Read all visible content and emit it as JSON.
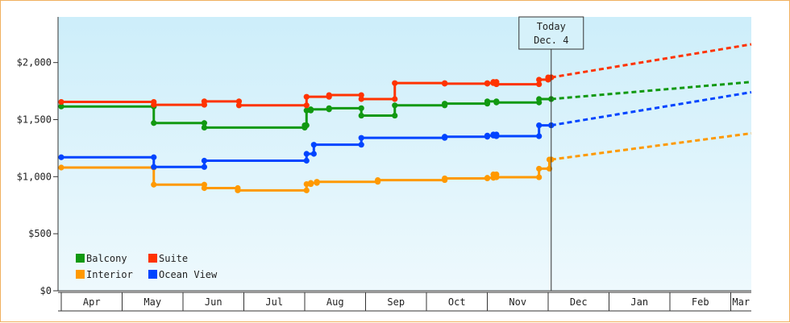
{
  "chart_data": {
    "type": "line",
    "title": "",
    "xlabel": "",
    "ylabel": "",
    "ylim": [
      0,
      2400
    ],
    "x_range": [
      "Apr",
      "Mar"
    ],
    "y_ticks": [
      {
        "value": 0,
        "label": "$0"
      },
      {
        "value": 500,
        "label": "$500"
      },
      {
        "value": 1000,
        "label": "$1,000"
      },
      {
        "value": 1500,
        "label": "$1,500"
      },
      {
        "value": 2000,
        "label": "$2,000"
      }
    ],
    "months": [
      "Apr",
      "May",
      "Jun",
      "Jul",
      "Aug",
      "Sep",
      "Oct",
      "Nov",
      "Dec",
      "Jan",
      "Feb",
      "Mar"
    ],
    "grid": false,
    "legend_position": "bottom-left",
    "today_marker": {
      "x": 8.05,
      "line1": "Today",
      "line2": "Dec. 4"
    },
    "series": [
      {
        "name": "Balcony",
        "color": "#119911",
        "points": [
          [
            0.0,
            1615
          ],
          [
            1.5,
            1615
          ],
          [
            1.52,
            1470
          ],
          [
            2.3,
            1470
          ],
          [
            2.35,
            1430
          ],
          [
            2.9,
            1430
          ],
          [
            4.0,
            1450
          ],
          [
            4.03,
            1580
          ],
          [
            4.1,
            1590
          ],
          [
            4.4,
            1600
          ],
          [
            4.9,
            1600
          ],
          [
            4.93,
            1535
          ],
          [
            5.45,
            1535
          ],
          [
            5.48,
            1625
          ],
          [
            6.3,
            1640
          ],
          [
            6.7,
            1640
          ],
          [
            7.0,
            1660
          ],
          [
            7.1,
            1660
          ],
          [
            7.15,
            1650
          ],
          [
            7.8,
            1650
          ],
          [
            7.85,
            1680
          ],
          [
            8.05,
            1680
          ]
        ],
        "forecast": [
          [
            8.05,
            1680
          ],
          [
            11.4,
            1830
          ]
        ]
      },
      {
        "name": "Suite",
        "color": "#ff3300",
        "points": [
          [
            0.0,
            1655
          ],
          [
            1.5,
            1655
          ],
          [
            1.52,
            1630
          ],
          [
            2.3,
            1630
          ],
          [
            2.35,
            1660
          ],
          [
            2.9,
            1660
          ],
          [
            2.92,
            1625
          ],
          [
            4.0,
            1625
          ],
          [
            4.03,
            1700
          ],
          [
            4.4,
            1715
          ],
          [
            4.9,
            1715
          ],
          [
            4.93,
            1680
          ],
          [
            5.45,
            1680
          ],
          [
            5.48,
            1820
          ],
          [
            6.3,
            1815
          ],
          [
            7.0,
            1820
          ],
          [
            7.1,
            1830
          ],
          [
            7.15,
            1810
          ],
          [
            7.8,
            1810
          ],
          [
            7.85,
            1850
          ],
          [
            8.0,
            1870
          ],
          [
            8.05,
            1870
          ]
        ],
        "forecast": [
          [
            8.05,
            1870
          ],
          [
            11.4,
            2160
          ]
        ]
      },
      {
        "name": "Interior",
        "color": "#ff9900",
        "points": [
          [
            0.0,
            1080
          ],
          [
            1.5,
            1080
          ],
          [
            1.52,
            930
          ],
          [
            2.3,
            930
          ],
          [
            2.35,
            900
          ],
          [
            2.9,
            880
          ],
          [
            4.0,
            880
          ],
          [
            4.03,
            935
          ],
          [
            4.1,
            945
          ],
          [
            4.2,
            955
          ],
          [
            5.2,
            970
          ],
          [
            6.3,
            985
          ],
          [
            7.0,
            990
          ],
          [
            7.1,
            1020
          ],
          [
            7.15,
            995
          ],
          [
            7.8,
            995
          ],
          [
            7.85,
            1070
          ],
          [
            8.0,
            1070
          ],
          [
            8.02,
            1150
          ],
          [
            8.05,
            1150
          ]
        ],
        "forecast": [
          [
            8.05,
            1150
          ],
          [
            11.4,
            1380
          ]
        ]
      },
      {
        "name": "Ocean View",
        "color": "#0044ff",
        "points": [
          [
            0.0,
            1170
          ],
          [
            1.5,
            1170
          ],
          [
            1.52,
            1085
          ],
          [
            2.3,
            1085
          ],
          [
            2.35,
            1140
          ],
          [
            2.9,
            1140
          ],
          [
            4.0,
            1140
          ],
          [
            4.03,
            1200
          ],
          [
            4.1,
            1200
          ],
          [
            4.15,
            1280
          ],
          [
            4.9,
            1280
          ],
          [
            4.93,
            1340
          ],
          [
            6.3,
            1350
          ],
          [
            7.0,
            1360
          ],
          [
            7.1,
            1370
          ],
          [
            7.15,
            1355
          ],
          [
            7.8,
            1355
          ],
          [
            7.85,
            1450
          ],
          [
            8.05,
            1450
          ]
        ],
        "forecast": [
          [
            8.05,
            1450
          ],
          [
            11.4,
            1740
          ]
        ]
      }
    ]
  }
}
